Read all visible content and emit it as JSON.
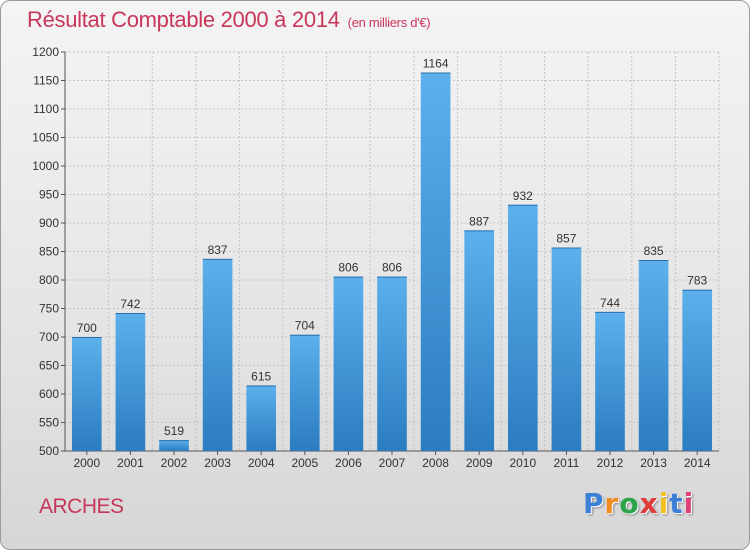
{
  "title": "Résultat Comptable 2000 à 2014",
  "subtitle": "(en milliers d'€)",
  "place": "ARCHES",
  "logo": {
    "letters": [
      "P",
      "r",
      "o",
      "x",
      "i",
      "t",
      "i"
    ],
    "colors": [
      "#3c7fd6",
      "#f08a1c",
      "#2aa54a",
      "#e03a3a",
      "#f0c020",
      "#3c7fd6",
      "#e0407a"
    ]
  },
  "colors": {
    "bar": "#4a9fe0",
    "bar_dark": "#2e7fc3",
    "grid": "#c4c4c4",
    "title": "#c8365a"
  },
  "chart_data": {
    "type": "bar",
    "title": "Résultat Comptable 2000 à 2014",
    "subtitle": "(en milliers d'€)",
    "categories": [
      "2000",
      "2001",
      "2002",
      "2003",
      "2004",
      "2005",
      "2006",
      "2007",
      "2008",
      "2009",
      "2010",
      "2011",
      "2012",
      "2013",
      "2014"
    ],
    "values": [
      700,
      742,
      519,
      837,
      615,
      704,
      806,
      806,
      1164,
      887,
      932,
      857,
      744,
      835,
      783
    ],
    "ylim": [
      500,
      1200
    ],
    "yticks": [
      500,
      550,
      600,
      650,
      700,
      750,
      800,
      850,
      900,
      950,
      1000,
      1050,
      1100,
      1150,
      1200
    ],
    "grid": true,
    "xlabel": "",
    "ylabel": ""
  }
}
